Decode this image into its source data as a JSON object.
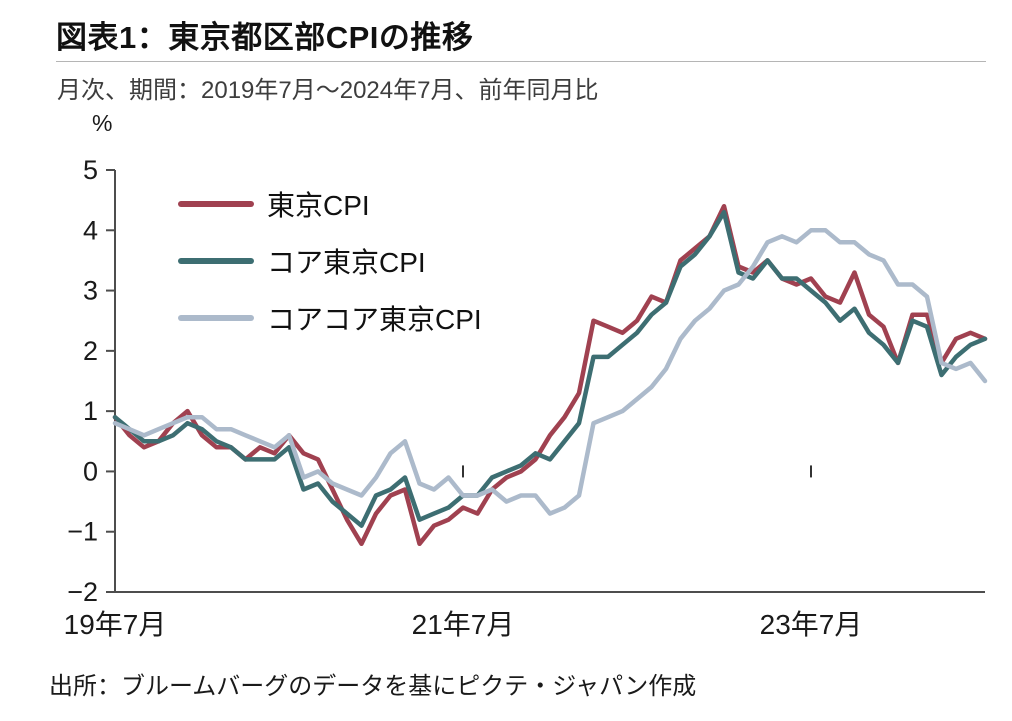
{
  "header": {
    "title": "図表1：東京都区部CPIの推移",
    "subtitle": "月次、期間：2019年7月～2024年7月、前年同月比"
  },
  "chart_data": {
    "type": "line",
    "unit_label": "%",
    "ylim": [
      -2,
      5
    ],
    "yticks": [
      5,
      4,
      3,
      2,
      1,
      0,
      -1,
      -2
    ],
    "x_period_start": "2019年7月",
    "x_period_end": "2024年7月",
    "months_total": 61,
    "x_tick_labels": [
      {
        "label": "19年7月",
        "month_index": 0
      },
      {
        "label": "21年7月",
        "month_index": 24
      },
      {
        "label": "23年7月",
        "month_index": 48
      }
    ],
    "grid": "off",
    "legend_position": "top-left-inside",
    "axis_color": "#4d4d4d",
    "series": [
      {
        "name": "東京CPI",
        "color": "#A04150",
        "values": [
          0.9,
          0.6,
          0.4,
          0.5,
          0.8,
          1.0,
          0.6,
          0.4,
          0.4,
          0.2,
          0.4,
          0.3,
          0.6,
          0.3,
          0.2,
          -0.3,
          -0.8,
          -1.2,
          -0.7,
          -0.4,
          -0.3,
          -1.2,
          -0.9,
          -0.8,
          -0.6,
          -0.7,
          -0.3,
          -0.1,
          0.0,
          0.2,
          0.6,
          0.9,
          1.3,
          2.5,
          2.4,
          2.3,
          2.5,
          2.9,
          2.8,
          3.5,
          3.7,
          3.9,
          4.4,
          3.4,
          3.3,
          3.5,
          3.2,
          3.1,
          3.2,
          2.9,
          2.8,
          3.3,
          2.6,
          2.4,
          1.8,
          2.6,
          2.6,
          1.8,
          2.2,
          2.3,
          2.2
        ]
      },
      {
        "name": "コア東京CPI",
        "color": "#3D6E72",
        "values": [
          0.9,
          0.7,
          0.5,
          0.5,
          0.6,
          0.8,
          0.7,
          0.5,
          0.4,
          0.2,
          0.2,
          0.2,
          0.4,
          -0.3,
          -0.2,
          -0.5,
          -0.7,
          -0.9,
          -0.4,
          -0.3,
          -0.1,
          -0.8,
          -0.7,
          -0.6,
          -0.4,
          -0.4,
          -0.1,
          0.0,
          0.1,
          0.3,
          0.2,
          0.5,
          0.8,
          1.9,
          1.9,
          2.1,
          2.3,
          2.6,
          2.8,
          3.4,
          3.6,
          3.9,
          4.3,
          3.3,
          3.2,
          3.5,
          3.2,
          3.2,
          3.0,
          2.8,
          2.5,
          2.7,
          2.3,
          2.1,
          1.8,
          2.5,
          2.4,
          1.6,
          1.9,
          2.1,
          2.2
        ]
      },
      {
        "name": "コアコア東京CPI",
        "color": "#ACBACB",
        "values": [
          0.8,
          0.7,
          0.6,
          0.7,
          0.8,
          0.9,
          0.9,
          0.7,
          0.7,
          0.6,
          0.5,
          0.4,
          0.6,
          -0.1,
          0.0,
          -0.2,
          -0.3,
          -0.4,
          -0.1,
          0.3,
          0.5,
          -0.2,
          -0.3,
          -0.1,
          -0.4,
          -0.4,
          -0.3,
          -0.5,
          -0.4,
          -0.4,
          -0.7,
          -0.6,
          -0.4,
          0.8,
          0.9,
          1.0,
          1.2,
          1.4,
          1.7,
          2.2,
          2.5,
          2.7,
          3.0,
          3.1,
          3.4,
          3.8,
          3.9,
          3.8,
          4.0,
          4.0,
          3.8,
          3.8,
          3.6,
          3.5,
          3.1,
          3.1,
          2.9,
          1.8,
          1.7,
          1.8,
          1.5
        ]
      }
    ]
  },
  "footer": {
    "source": "出所：ブルームバーグのデータを基にピクテ・ジャパン作成"
  }
}
